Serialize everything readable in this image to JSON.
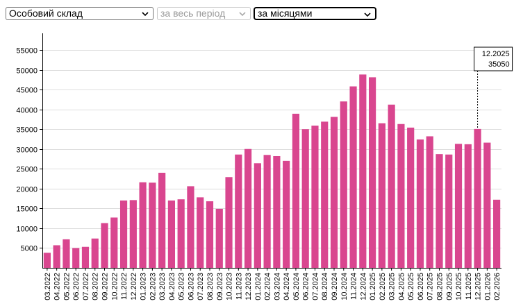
{
  "filters": {
    "type": "Особовий склад",
    "period": "за весь період",
    "grouping": "за місяцями"
  },
  "colors": {
    "bar": "#d9468f",
    "grid": "#dddddd",
    "axis": "#000000"
  },
  "tooltip": {
    "label": "12.2025",
    "value": "35050"
  },
  "chart_data": {
    "type": "bar",
    "categories": [
      "03.2022",
      "04.2022",
      "05.2022",
      "06.2022",
      "07.2022",
      "08.2022",
      "09.2022",
      "10.2022",
      "11.2022",
      "12.2022",
      "01.2023",
      "02.2023",
      "03.2023",
      "04.2023",
      "05.2023",
      "06.2023",
      "07.2023",
      "08.2023",
      "09.2023",
      "10.2023",
      "11.2023",
      "12.2023",
      "01.2024",
      "02.2024",
      "03.2024",
      "04.2024",
      "05.2024",
      "06.2024",
      "07.2024",
      "08.2024",
      "09.2024",
      "10.2024",
      "11.2024",
      "12.2024",
      "01.2025",
      "02.2025",
      "03.2025",
      "04.2025",
      "05.2025",
      "06.2025",
      "07.2025",
      "08.2025",
      "09.2025",
      "10.2025",
      "11.2025",
      "12.2025",
      "01.2026",
      "02.2026"
    ],
    "values": [
      3800,
      5700,
      7200,
      5000,
      5300,
      7400,
      11300,
      12700,
      17000,
      17100,
      21600,
      21500,
      24000,
      17000,
      17300,
      20600,
      17800,
      16800,
      14900,
      22900,
      28600,
      30000,
      26400,
      28500,
      28200,
      27000,
      38900,
      35000,
      35900,
      36900,
      38100,
      42000,
      45800,
      48800,
      48100,
      36500,
      41200,
      36300,
      35400,
      32400,
      33200,
      28700,
      28600,
      31300,
      31200,
      35050,
      31600,
      17200
    ],
    "yticks": [
      5000,
      10000,
      15000,
      20000,
      25000,
      30000,
      35000,
      40000,
      45000,
      50000,
      55000
    ],
    "ylim": [
      0,
      58500
    ],
    "grid": true,
    "legend": false
  }
}
